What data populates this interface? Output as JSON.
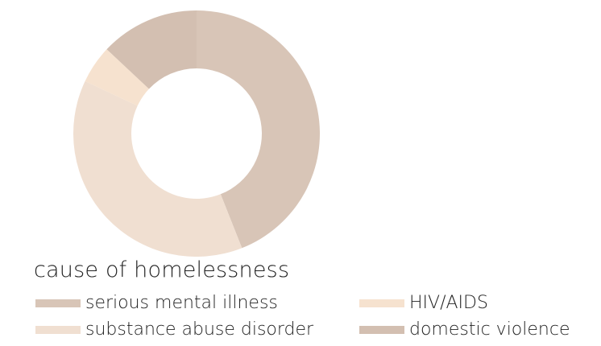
{
  "chart_data": {
    "type": "pie",
    "donut": true,
    "title": "cause of homelessness",
    "legend_position": "bottom",
    "categories": [
      "serious mental illness",
      "substance abuse disorder",
      "HIV/AIDS",
      "domestic violence"
    ],
    "values": [
      44,
      38,
      5,
      13
    ],
    "colors": [
      "#d8c5b7",
      "#f0dfd1",
      "#f6e2cf",
      "#d3bfb1"
    ]
  }
}
